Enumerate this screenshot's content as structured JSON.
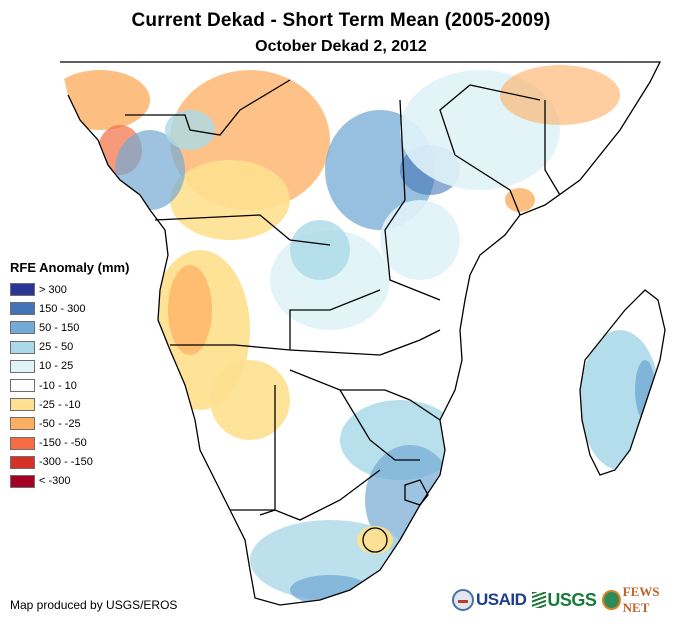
{
  "title": "Current Dekad - Short Term Mean (2005-2009)",
  "subtitle": "October Dekad 2, 2012",
  "legend": {
    "title": "RFE Anomaly (mm)",
    "items": [
      {
        "label": "> 300",
        "color": "#2b3593"
      },
      {
        "label": "150 - 300",
        "color": "#4474b8"
      },
      {
        "label": "50 - 150",
        "color": "#74aad4"
      },
      {
        "label": "25 - 50",
        "color": "#abd9e9"
      },
      {
        "label": "10 - 25",
        "color": "#e0f3f8"
      },
      {
        "label": "-10 - 10",
        "color": "#ffffff"
      },
      {
        "label": "-25 - -10",
        "color": "#fee090"
      },
      {
        "label": "-50 - -25",
        "color": "#fdae61"
      },
      {
        "label": "-150 - -50",
        "color": "#f46d43"
      },
      {
        "label": "-300 - -150",
        "color": "#d73027"
      },
      {
        "label": "< -300",
        "color": "#a50026"
      }
    ]
  },
  "credit": "Map produced by USGS/EROS",
  "logos": {
    "usaid": "USAID",
    "usgs": "USGS",
    "fewsnet": "FEWS NET"
  },
  "map": {
    "region": "Central and Southern Africa",
    "regions": [
      {
        "name": "west-coast-gulf-of-guinea",
        "anomaly_class": "-50 - -25"
      },
      {
        "name": "cameroon-gabon",
        "anomaly_class": "50 - 150"
      },
      {
        "name": "central-african-republic-drc-north",
        "anomaly_class": "-50 - -25"
      },
      {
        "name": "east-drc-uganda-rwanda",
        "anomaly_class": "50 - 150"
      },
      {
        "name": "kenya",
        "anomaly_class": "10 - 25"
      },
      {
        "name": "somalia-coast",
        "anomaly_class": "-50 - -25"
      },
      {
        "name": "angola",
        "anomaly_class": "-25 - -10"
      },
      {
        "name": "zambia",
        "anomaly_class": "10 - 25"
      },
      {
        "name": "zimbabwe-mozambique-south",
        "anomaly_class": "50 - 150"
      },
      {
        "name": "namibia-botswana",
        "anomaly_class": "-10 - 10"
      },
      {
        "name": "south-africa-east",
        "anomaly_class": "25 - 50"
      },
      {
        "name": "lesotho",
        "anomaly_class": "-25 - -10"
      },
      {
        "name": "madagascar",
        "anomaly_class": "50 - 150"
      }
    ]
  }
}
